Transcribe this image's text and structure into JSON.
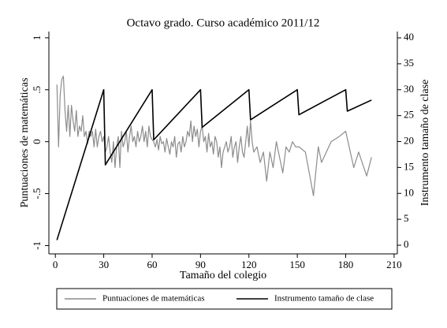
{
  "chart_data": {
    "type": "line",
    "title": "Octavo grado. Curso académico 2011/12",
    "xlabel": "Tamaño del colegio",
    "ylabel": "Puntuaciones de matemáticas",
    "y2label": "Instrumento tamaño de clase",
    "xlim": [
      -4,
      212
    ],
    "xticks": [
      0,
      30,
      60,
      90,
      120,
      150,
      180,
      210
    ],
    "ylim": [
      -1.08,
      1.06
    ],
    "yticks": [
      -1,
      {
        "value": -0.5,
        "label": "-.5"
      },
      0,
      {
        "value": 0.5,
        "label": ".5"
      },
      1
    ],
    "y2lim": [
      -1.67,
      41.22
    ],
    "y2ticks": [
      0,
      5,
      10,
      15,
      20,
      25,
      30,
      35,
      40
    ],
    "grid": false,
    "legend": "bottom",
    "series": [
      {
        "name": "Puntuaciones de matemáticas",
        "color": "#8c8c8c",
        "x": [
          1,
          2,
          3,
          4,
          5,
          6,
          7,
          8,
          9,
          10,
          11,
          12,
          13,
          14,
          15,
          16,
          17,
          18,
          19,
          20,
          21,
          22,
          23,
          24,
          25,
          26,
          27,
          28,
          29,
          30,
          31,
          32,
          33,
          34,
          35,
          36,
          37,
          38,
          39,
          40,
          41,
          42,
          43,
          44,
          45,
          46,
          47,
          48,
          49,
          50,
          51,
          52,
          53,
          54,
          55,
          56,
          57,
          58,
          59,
          60,
          61,
          62,
          63,
          64,
          65,
          66,
          67,
          68,
          69,
          70,
          71,
          72,
          73,
          74,
          75,
          76,
          77,
          78,
          79,
          80,
          81,
          82,
          83,
          84,
          85,
          86,
          87,
          88,
          89,
          90,
          91,
          92,
          93,
          94,
          95,
          96,
          97,
          98,
          99,
          100,
          101,
          102,
          103,
          104,
          105,
          106,
          107,
          108,
          109,
          110,
          111,
          112,
          113,
          114,
          115,
          116,
          117,
          118,
          119,
          120,
          121,
          122,
          123,
          125,
          127,
          129,
          131,
          133,
          135,
          137,
          139,
          141,
          143,
          145,
          147,
          149,
          151,
          155,
          158,
          160,
          163,
          165,
          168,
          171,
          176,
          180,
          185,
          188,
          193,
          196
        ],
        "values": [
          0.55,
          -0.05,
          0.45,
          0.6,
          0.63,
          0.3,
          0.1,
          0.35,
          0.05,
          0.35,
          0.2,
          0.1,
          0.3,
          0.05,
          0.15,
          0.1,
          0.25,
          0.05,
          0.1,
          -0.02,
          0.1,
          0.05,
          0.1,
          -0.05,
          0.12,
          -0.05,
          0.05,
          0.1,
          0.0,
          0.05,
          -0.1,
          -0.05,
          0.05,
          -0.1,
          -0.2,
          0.0,
          -0.25,
          -0.05,
          0.05,
          -0.25,
          0.1,
          -0.05,
          0.0,
          0.1,
          -0.1,
          0.05,
          0.15,
          0.0,
          0.05,
          -0.05,
          0.1,
          0.0,
          0.05,
          0.15,
          0.0,
          0.1,
          -0.05,
          0.15,
          0.05,
          0.02,
          0.0,
          -0.05,
          0.02,
          -0.08,
          0.05,
          -0.02,
          0.0,
          -0.1,
          0.03,
          -0.05,
          -0.12,
          0.0,
          -0.05,
          0.05,
          -0.15,
          -0.02,
          0.0,
          -0.1,
          0.05,
          -0.05,
          0.0,
          0.1,
          0.05,
          0.2,
          0.0,
          0.15,
          0.05,
          0.12,
          -0.05,
          0.1,
          0.15,
          0.0,
          0.05,
          -0.1,
          0.08,
          -0.05,
          0.0,
          -0.12,
          0.05,
          0.0,
          -0.15,
          -0.05,
          -0.25,
          -0.1,
          -0.05,
          0.0,
          -0.1,
          -0.05,
          0.05,
          -0.15,
          -0.05,
          0.0,
          -0.2,
          -0.05,
          0.05,
          -0.1,
          -0.15,
          0.0,
          0.15,
          -0.05,
          0.2,
          0.0,
          -0.1,
          -0.05,
          -0.2,
          -0.1,
          -0.38,
          -0.1,
          -0.25,
          0.0,
          -0.15,
          -0.3,
          -0.05,
          -0.1,
          0.0,
          -0.05,
          -0.05,
          -0.1,
          -0.35,
          -0.52,
          -0.05,
          -0.2,
          -0.1,
          0.0,
          0.05,
          0.1,
          -0.25,
          -0.1,
          -0.33,
          -0.15
        ]
      },
      {
        "name": "Instrumento tamaño de clase",
        "color": "#000000",
        "axis": "y2",
        "x": [
          1,
          30,
          31,
          60,
          61,
          90,
          91,
          120,
          121,
          150,
          151,
          180,
          181,
          196
        ],
        "values": [
          1,
          30,
          15.5,
          30,
          20.33,
          30,
          22.75,
          30,
          24.2,
          30,
          25.17,
          30,
          25.86,
          28
        ]
      }
    ]
  }
}
